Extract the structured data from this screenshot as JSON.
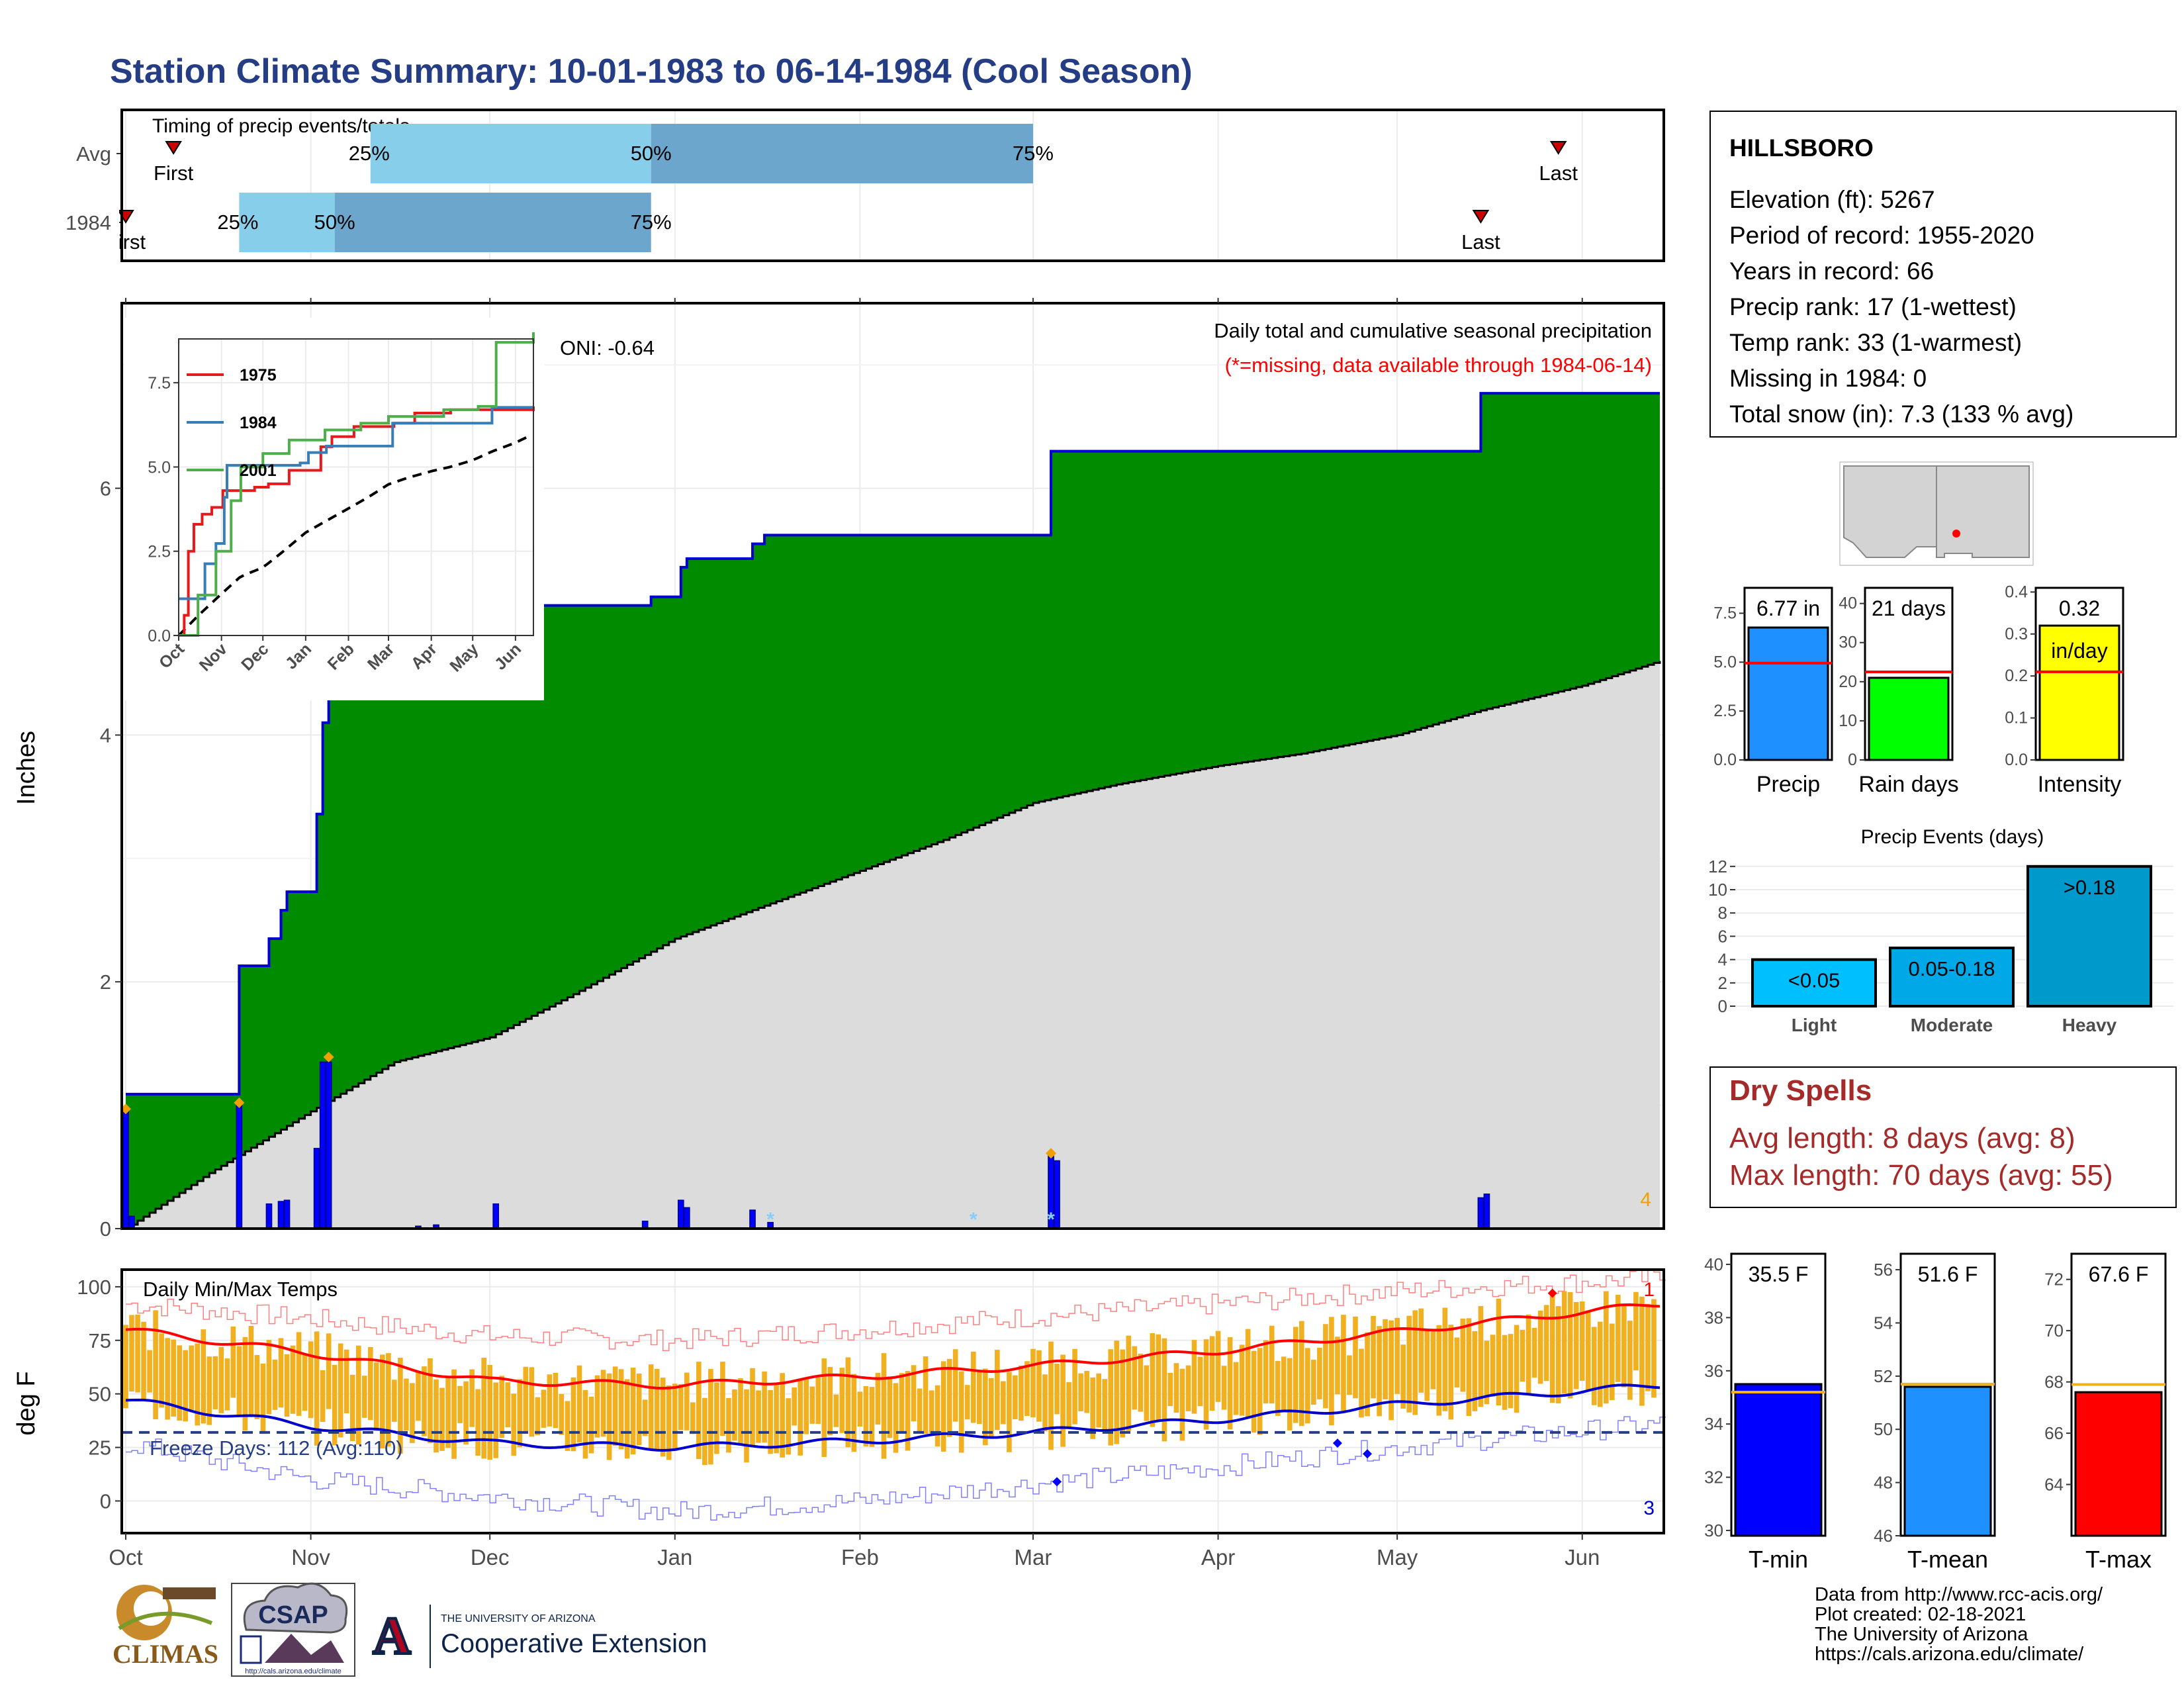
{
  "title": "Station Climate Summary: 10-01-1983 to 06-14-1984 (Cool Season)",
  "colors": {
    "title": "#253d84",
    "green": "#008b00",
    "blue_line": "#0000d0",
    "grey_fill": "#dcdcdc",
    "orange": "#f0a000",
    "light_blue": "#87ceeb",
    "steel_blue": "#6ca6cd",
    "dry_spells": "#a52a2a",
    "tmin": "#0000ff",
    "tmean": "#1e90ff",
    "tmax": "#ff0000",
    "precip_bar": "#1e90ff",
    "rain_bar": "#00ff00",
    "intensity_bar": "#ffff00"
  },
  "timing": {
    "title": "Timing of precip events/totals",
    "rows": [
      {
        "label": "Avg",
        "first_label": "First",
        "last_label": "Last",
        "first": "10-09",
        "p25": "11-11",
        "p50": "12-28",
        "p75": "03-01",
        "last": "05-28",
        "p25_label": "25%",
        "p50_label": "50%",
        "p75_label": "75%"
      },
      {
        "label": "1984",
        "first_label": "First",
        "last_label": "Last",
        "first": "10-01",
        "p25": "10-20",
        "p50": "11-05",
        "p75": "12-28",
        "last": "05-15",
        "p25_label": "25%",
        "p50_label": "50%",
        "p75_label": "75%"
      }
    ]
  },
  "station": {
    "name": "HILLSBORO",
    "lines": [
      "Elevation (ft): 5267",
      "Period of record: 1955-2020",
      "Years in record: 66",
      "Precip rank: 17 (1-wettest)",
      "Temp rank: 33 (1-warmest)",
      "Missing in 1984: 0",
      "Total snow (in): 7.3 (133 % avg)"
    ]
  },
  "month_labels": [
    "Oct",
    "Nov",
    "Dec",
    "Jan",
    "Feb",
    "Mar",
    "Apr",
    "May",
    "Jun"
  ],
  "chart_data": [
    {
      "type": "area",
      "title": "Daily total and cumulative seasonal precipitation",
      "subtitle": "(*=missing, data available through 1984-06-14)",
      "ylabel": "Inches",
      "ylim": [
        0,
        7.5
      ],
      "yticks": [
        0,
        2,
        4,
        6
      ],
      "oni": "ONI: -0.64",
      "corner_count": "4",
      "cumulative_steps": [
        [
          "10-01",
          1.09
        ],
        [
          "10-20",
          2.13
        ],
        [
          "10-25",
          2.35
        ],
        [
          "10-27",
          2.58
        ],
        [
          "10-28",
          2.73
        ],
        [
          "11-02",
          3.36
        ],
        [
          "11-03",
          4.1
        ],
        [
          "11-04",
          4.85
        ],
        [
          "11-05",
          5.05
        ],
        [
          "12-28",
          5.12
        ],
        [
          "01-02",
          5.36
        ],
        [
          "01-03",
          5.43
        ],
        [
          "01-14",
          5.55
        ],
        [
          "01-16",
          5.62
        ],
        [
          "03-04",
          6.3
        ],
        [
          "05-15",
          6.77
        ],
        [
          "06-14",
          6.77
        ]
      ],
      "avg_cumulative": [
        [
          "10-01",
          0
        ],
        [
          "10-15",
          0.45
        ],
        [
          "11-01",
          0.95
        ],
        [
          "11-15",
          1.35
        ],
        [
          "12-01",
          1.55
        ],
        [
          "12-15",
          1.9
        ],
        [
          "01-01",
          2.35
        ],
        [
          "01-15",
          2.6
        ],
        [
          "02-01",
          2.9
        ],
        [
          "02-15",
          3.15
        ],
        [
          "03-01",
          3.45
        ],
        [
          "03-15",
          3.6
        ],
        [
          "04-01",
          3.75
        ],
        [
          "04-15",
          3.85
        ],
        [
          "05-01",
          4.0
        ],
        [
          "05-15",
          4.2
        ],
        [
          "06-01",
          4.4
        ],
        [
          "06-14",
          4.6
        ]
      ],
      "daily_bars": [
        [
          "10-01",
          0.97
        ],
        [
          "10-02",
          0.1
        ],
        [
          "10-20",
          1.02
        ],
        [
          "10-25",
          0.2
        ],
        [
          "10-27",
          0.22
        ],
        [
          "10-28",
          0.23
        ],
        [
          "11-02",
          0.65
        ],
        [
          "11-03",
          1.35
        ],
        [
          "11-04",
          1.35
        ],
        [
          "11-19",
          0.02
        ],
        [
          "11-22",
          0.03
        ],
        [
          "12-02",
          0.2
        ],
        [
          "12-27",
          0.06
        ],
        [
          "01-02",
          0.23
        ],
        [
          "01-03",
          0.17
        ],
        [
          "01-14",
          0.15
        ],
        [
          "01-17",
          0.05
        ],
        [
          "03-04",
          0.6
        ],
        [
          "03-05",
          0.55
        ],
        [
          "05-15",
          0.25
        ],
        [
          "05-16",
          0.28
        ]
      ],
      "snow_days": [
        "01-17",
        "02-20",
        "03-04"
      ],
      "inset": {
        "yticks": [
          0.0,
          2.5,
          5.0,
          7.5
        ],
        "series": [
          {
            "name": "1975",
            "color": "#e41a1c",
            "values": [
              [
                "10-01",
                0
              ],
              [
                "10-05",
                0.6
              ],
              [
                "10-08",
                2.5
              ],
              [
                "10-12",
                3.3
              ],
              [
                "10-18",
                3.6
              ],
              [
                "10-25",
                3.8
              ],
              [
                "11-02",
                4.3
              ],
              [
                "11-25",
                4.4
              ],
              [
                "12-05",
                4.5
              ],
              [
                "12-20",
                4.9
              ],
              [
                "01-02",
                4.9
              ],
              [
                "01-12",
                5.6
              ],
              [
                "01-20",
                5.9
              ],
              [
                "02-05",
                6.2
              ],
              [
                "03-05",
                6.3
              ],
              [
                "03-20",
                6.6
              ],
              [
                "04-15",
                6.7
              ],
              [
                "06-14",
                6.8
              ]
            ]
          },
          {
            "name": "1984",
            "color": "#377eb8",
            "values": [
              [
                "10-01",
                1.09
              ],
              [
                "10-20",
                2.13
              ],
              [
                "10-28",
                2.73
              ],
              [
                "11-03",
                4.1
              ],
              [
                "11-05",
                5.05
              ],
              [
                "12-28",
                5.12
              ],
              [
                "01-03",
                5.43
              ],
              [
                "01-16",
                5.62
              ],
              [
                "03-04",
                6.3
              ],
              [
                "05-15",
                6.77
              ],
              [
                "06-14",
                6.77
              ]
            ]
          },
          {
            "name": "2001",
            "color": "#4daf4a",
            "values": [
              [
                "10-01",
                0
              ],
              [
                "10-15",
                1.2
              ],
              [
                "10-28",
                2.5
              ],
              [
                "11-08",
                4.0
              ],
              [
                "11-15",
                5.0
              ],
              [
                "12-01",
                5.4
              ],
              [
                "12-20",
                5.8
              ],
              [
                "01-15",
                6.1
              ],
              [
                "02-10",
                6.3
              ],
              [
                "03-01",
                6.5
              ],
              [
                "04-10",
                6.7
              ],
              [
                "05-05",
                6.8
              ],
              [
                "05-18",
                8.7
              ],
              [
                "06-14",
                9.0
              ]
            ]
          }
        ]
      }
    },
    {
      "type": "bar",
      "title": "Daily Min/Max Temps",
      "ylabel": "deg F",
      "ylim": [
        -15,
        108
      ],
      "yticks": [
        0,
        25,
        50,
        75,
        100
      ],
      "freeze_line": 32,
      "freeze_label": "Freeze Days: 112 (Avg:110)",
      "record_high_count": "1",
      "record_low_count": "3",
      "normal_max": [
        [
          "10-01",
          80
        ],
        [
          "11-01",
          69
        ],
        [
          "12-01",
          56
        ],
        [
          "01-01",
          54
        ],
        [
          "02-01",
          58
        ],
        [
          "03-01",
          63
        ],
        [
          "04-01",
          70
        ],
        [
          "05-01",
          79
        ],
        [
          "06-14",
          92
        ]
      ],
      "normal_min": [
        [
          "10-01",
          47
        ],
        [
          "11-01",
          35
        ],
        [
          "12-01",
          27
        ],
        [
          "01-01",
          25
        ],
        [
          "02-01",
          28
        ],
        [
          "03-01",
          32
        ],
        [
          "04-01",
          38
        ],
        [
          "05-01",
          45
        ],
        [
          "06-14",
          54
        ]
      ],
      "record_max": [
        [
          "10-01",
          92
        ],
        [
          "11-01",
          85
        ],
        [
          "12-01",
          77
        ],
        [
          "01-01",
          75
        ],
        [
          "02-01",
          80
        ],
        [
          "03-01",
          86
        ],
        [
          "04-01",
          92
        ],
        [
          "05-01",
          98
        ],
        [
          "06-14",
          104
        ]
      ],
      "record_min": [
        [
          "10-01",
          27
        ],
        [
          "11-01",
          10
        ],
        [
          "12-01",
          2
        ],
        [
          "01-01",
          -5
        ],
        [
          "02-01",
          0
        ],
        [
          "03-01",
          8
        ],
        [
          "04-01",
          16
        ],
        [
          "05-01",
          25
        ],
        [
          "06-14",
          36
        ]
      ],
      "record_points": [
        {
          "date": "05-27",
          "value": 97,
          "kind": "high"
        },
        {
          "date": "03-05",
          "value": 9,
          "kind": "low"
        },
        {
          "date": "04-21",
          "value": 27,
          "kind": "low"
        },
        {
          "date": "04-26",
          "value": 22,
          "kind": "low"
        }
      ]
    },
    {
      "type": "bar",
      "categories": [
        "Precip",
        "Rain days",
        "Intensity"
      ],
      "panels": [
        {
          "label": "Precip",
          "value": 6.77,
          "avg": 4.95,
          "text": "6.77 in",
          "ymax": 8.8,
          "yticks": [
            "0.0",
            "2.5",
            "5.0",
            "7.5"
          ],
          "tickvals": [
            0,
            2.5,
            5,
            7.5
          ],
          "color": "#1e90ff"
        },
        {
          "label": "Rain days",
          "value": 21,
          "avg": 22.5,
          "text": "21 days",
          "ymax": 44,
          "yticks": [
            "0",
            "10",
            "20",
            "30",
            "40"
          ],
          "tickvals": [
            0,
            10,
            20,
            30,
            40
          ],
          "color": "#00ff00"
        },
        {
          "label": "Intensity",
          "value": 0.32,
          "avg": 0.21,
          "text": "0.32",
          "text2": "in/day",
          "ymax": 0.41,
          "yticks": [
            "0.0",
            "0.1",
            "0.2",
            "0.3",
            "0.4"
          ],
          "tickvals": [
            0,
            0.1,
            0.2,
            0.3,
            0.4
          ],
          "color": "#ffff00"
        }
      ]
    },
    {
      "type": "bar",
      "title": "Precip Events (days)",
      "categories": [
        "Light",
        "Moderate",
        "Heavy"
      ],
      "values": [
        4,
        5,
        12
      ],
      "labels": [
        "<0.05",
        "0.05-0.18",
        ">0.18"
      ],
      "colors": [
        "#00bfff",
        "#00a8e8",
        "#0099cc"
      ],
      "yticks": [
        0,
        2,
        4,
        6,
        8,
        10,
        12
      ],
      "ylim": [
        0,
        12.5
      ]
    },
    {
      "type": "bar",
      "categories": [
        "T-min",
        "T-mean",
        "T-max"
      ],
      "panels": [
        {
          "label": "T-min",
          "value": 35.5,
          "avg": 35.2,
          "text": "35.5 F",
          "ylim": [
            29.8,
            40.4
          ],
          "yticks": [
            30,
            32,
            34,
            36,
            38,
            40
          ],
          "color": "#0000ff"
        },
        {
          "label": "T-mean",
          "value": 51.6,
          "avg": 51.7,
          "text": "51.6 F",
          "ylim": [
            46,
            56.6
          ],
          "yticks": [
            46,
            48,
            50,
            52,
            54,
            56
          ],
          "color": "#1e90ff"
        },
        {
          "label": "T-max",
          "value": 67.6,
          "avg": 67.9,
          "text": "67.6 F",
          "ylim": [
            62,
            73
          ],
          "yticks": [
            64,
            66,
            68,
            70,
            72
          ],
          "color": "#ff0000"
        }
      ]
    }
  ],
  "dry_spells": {
    "title": "Dry Spells",
    "line1": "Avg length: 8 days (avg: 8)",
    "line2": "Max length: 70 days (avg: 55)"
  },
  "footer": {
    "lines": [
      "Data from http://www.rcc-acis.org/",
      "Plot created: 02-18-2021",
      "The University of Arizona",
      "https://cals.arizona.edu/climate/"
    ]
  },
  "logos": {
    "climas": "CLIMAS",
    "csap": "CSAP",
    "csap_url": "http://cals.arizona.edu/climate",
    "ua_small": "THE UNIVERSITY OF ARIZONA",
    "ua_big": "Cooperative Extension"
  }
}
